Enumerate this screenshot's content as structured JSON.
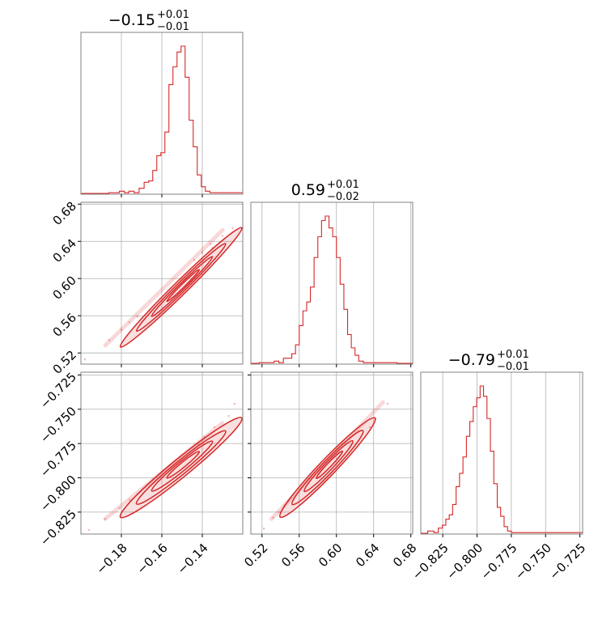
{
  "chart_data": [
    {
      "type": "histogram",
      "parameter_index": 0,
      "title": {
        "median": "−0.15",
        "upper": "+0.01",
        "lower": "−0.01"
      },
      "xlim": [
        -0.2,
        -0.12
      ],
      "bins": [
        {
          "x": -0.198,
          "y": 0.5
        },
        {
          "x": -0.195,
          "y": 0.5
        },
        {
          "x": -0.19,
          "y": 0.5
        },
        {
          "x": -0.1825,
          "y": 1
        },
        {
          "x": -0.1795,
          "y": 2
        },
        {
          "x": -0.1775,
          "y": 1
        },
        {
          "x": -0.175,
          "y": 2
        },
        {
          "x": -0.1725,
          "y": 1
        },
        {
          "x": -0.17,
          "y": 4
        },
        {
          "x": -0.1675,
          "y": 8
        },
        {
          "x": -0.1655,
          "y": 9
        },
        {
          "x": -0.1635,
          "y": 16
        },
        {
          "x": -0.1615,
          "y": 26
        },
        {
          "x": -0.1595,
          "y": 28
        },
        {
          "x": -0.1575,
          "y": 42
        },
        {
          "x": -0.1555,
          "y": 74
        },
        {
          "x": -0.1535,
          "y": 86
        },
        {
          "x": -0.1515,
          "y": 96
        },
        {
          "x": -0.1495,
          "y": 100
        },
        {
          "x": -0.1475,
          "y": 79
        },
        {
          "x": -0.1455,
          "y": 50
        },
        {
          "x": -0.1435,
          "y": 32
        },
        {
          "x": -0.1415,
          "y": 13
        },
        {
          "x": -0.1395,
          "y": 5
        },
        {
          "x": -0.1375,
          "y": 2
        },
        {
          "x": -0.135,
          "y": 1
        },
        {
          "x": -0.132,
          "y": 1
        },
        {
          "x": -0.126,
          "y": 1
        },
        {
          "x": -0.121,
          "y": 1
        }
      ]
    },
    {
      "type": "histogram",
      "parameter_index": 1,
      "title": {
        "median": "0.59",
        "upper": "+0.01",
        "lower": "−0.02"
      },
      "xlim": [
        0.508,
        0.682
      ],
      "bins": [
        {
          "x": 0.512,
          "y": 0.5
        },
        {
          "x": 0.522,
          "y": 1
        },
        {
          "x": 0.53,
          "y": 1
        },
        {
          "x": 0.536,
          "y": 2
        },
        {
          "x": 0.54,
          "y": 1
        },
        {
          "x": 0.546,
          "y": 4
        },
        {
          "x": 0.55,
          "y": 4
        },
        {
          "x": 0.554,
          "y": 7
        },
        {
          "x": 0.558,
          "y": 13
        },
        {
          "x": 0.562,
          "y": 26
        },
        {
          "x": 0.566,
          "y": 36
        },
        {
          "x": 0.57,
          "y": 42
        },
        {
          "x": 0.574,
          "y": 52
        },
        {
          "x": 0.578,
          "y": 72
        },
        {
          "x": 0.582,
          "y": 86
        },
        {
          "x": 0.586,
          "y": 97
        },
        {
          "x": 0.59,
          "y": 100
        },
        {
          "x": 0.594,
          "y": 92
        },
        {
          "x": 0.598,
          "y": 86
        },
        {
          "x": 0.602,
          "y": 72
        },
        {
          "x": 0.606,
          "y": 54
        },
        {
          "x": 0.61,
          "y": 37
        },
        {
          "x": 0.614,
          "y": 20
        },
        {
          "x": 0.618,
          "y": 11
        },
        {
          "x": 0.622,
          "y": 6
        },
        {
          "x": 0.626,
          "y": 2
        },
        {
          "x": 0.632,
          "y": 1
        },
        {
          "x": 0.652,
          "y": 1
        },
        {
          "x": 0.678,
          "y": 0.5
        }
      ]
    },
    {
      "type": "histogram",
      "parameter_index": 2,
      "title": {
        "median": "−0.79",
        "upper": "+0.01",
        "lower": "−0.01"
      },
      "xlim": [
        -0.841,
        -0.723
      ],
      "bins": [
        {
          "x": -0.839,
          "y": 0.5
        },
        {
          "x": -0.833,
          "y": 2
        },
        {
          "x": -0.83,
          "y": 1
        },
        {
          "x": -0.8265,
          "y": 4
        },
        {
          "x": -0.824,
          "y": 6
        },
        {
          "x": -0.8215,
          "y": 10
        },
        {
          "x": -0.819,
          "y": 13
        },
        {
          "x": -0.8165,
          "y": 20
        },
        {
          "x": -0.814,
          "y": 32
        },
        {
          "x": -0.8115,
          "y": 41
        },
        {
          "x": -0.809,
          "y": 52
        },
        {
          "x": -0.8065,
          "y": 66
        },
        {
          "x": -0.804,
          "y": 76
        },
        {
          "x": -0.8015,
          "y": 86
        },
        {
          "x": -0.799,
          "y": 92
        },
        {
          "x": -0.7965,
          "y": 100
        },
        {
          "x": -0.794,
          "y": 93
        },
        {
          "x": -0.7915,
          "y": 78
        },
        {
          "x": -0.789,
          "y": 56
        },
        {
          "x": -0.7865,
          "y": 34
        },
        {
          "x": -0.784,
          "y": 18
        },
        {
          "x": -0.7815,
          "y": 12
        },
        {
          "x": -0.779,
          "y": 5
        },
        {
          "x": -0.7765,
          "y": 2
        },
        {
          "x": -0.7735,
          "y": 1
        },
        {
          "x": -0.77,
          "y": 1
        },
        {
          "x": -0.764,
          "y": 1
        },
        {
          "x": -0.745,
          "y": 1
        },
        {
          "x": -0.725,
          "y": 1
        }
      ]
    },
    {
      "type": "scatter",
      "parameters": [
        0,
        1
      ],
      "xlim": [
        -0.2,
        -0.12
      ],
      "ylim": [
        0.508,
        0.682
      ],
      "trend": {
        "x": [
          -0.188,
          -0.13
        ],
        "y": [
          0.528,
          0.652
        ]
      },
      "points": [
        {
          "x": -0.198,
          "y": 0.513
        },
        {
          "x": -0.186,
          "y": 0.534
        },
        {
          "x": -0.18,
          "y": 0.545
        },
        {
          "x": -0.176,
          "y": 0.553
        },
        {
          "x": -0.172,
          "y": 0.559
        },
        {
          "x": -0.14,
          "y": 0.628
        },
        {
          "x": -0.136,
          "y": 0.637
        },
        {
          "x": -0.13,
          "y": 0.646
        },
        {
          "x": -0.125,
          "y": 0.654
        },
        {
          "x": -0.135,
          "y": 0.633
        },
        {
          "x": -0.166,
          "y": 0.566
        },
        {
          "x": -0.144,
          "y": 0.62
        }
      ],
      "contours": [
        {
          "cx": -0.1505,
          "cy": 0.5905,
          "a": 0.03,
          "b": 0.0024
        },
        {
          "cx": -0.1505,
          "cy": 0.5905,
          "a": 0.022,
          "b": 0.0017
        },
        {
          "cx": -0.15,
          "cy": 0.5915,
          "a": 0.015,
          "b": 0.0011
        },
        {
          "cx": -0.1495,
          "cy": 0.5925,
          "a": 0.008,
          "b": 0.0006
        }
      ],
      "yticks": [
        "0.52",
        "0.56",
        "0.60",
        "0.64",
        "0.68"
      ]
    },
    {
      "type": "scatter",
      "parameters": [
        0,
        2
      ],
      "xlim": [
        -0.2,
        -0.12
      ],
      "ylim": [
        -0.841,
        -0.723
      ],
      "trend": {
        "x": [
          -0.188,
          -0.13
        ],
        "y": [
          -0.83,
          -0.76
        ]
      },
      "points": [
        {
          "x": -0.196,
          "y": -0.838
        },
        {
          "x": -0.188,
          "y": -0.83
        },
        {
          "x": -0.181,
          "y": -0.822
        },
        {
          "x": -0.176,
          "y": -0.816
        },
        {
          "x": -0.139,
          "y": -0.77
        },
        {
          "x": -0.134,
          "y": -0.763
        },
        {
          "x": -0.127,
          "y": -0.755
        },
        {
          "x": -0.124,
          "y": -0.746
        },
        {
          "x": -0.172,
          "y": -0.812
        },
        {
          "x": -0.142,
          "y": -0.776
        }
      ],
      "contours": [
        {
          "cx": -0.1505,
          "cy": -0.7925,
          "a": 0.03,
          "b": 0.0022
        },
        {
          "cx": -0.1505,
          "cy": -0.7925,
          "a": 0.022,
          "b": 0.0016
        },
        {
          "cx": -0.15,
          "cy": -0.7915,
          "a": 0.015,
          "b": 0.0011
        },
        {
          "cx": -0.1495,
          "cy": -0.7905,
          "a": 0.008,
          "b": 0.0006
        }
      ],
      "xticks": [
        "−0.18",
        "−0.16",
        "−0.14"
      ],
      "yticks": [
        "−0.825",
        "−0.800",
        "−0.775",
        "−0.750",
        "−0.725"
      ]
    },
    {
      "type": "scatter",
      "parameters": [
        1,
        2
      ],
      "xlim": [
        0.508,
        0.682
      ],
      "ylim": [
        -0.841,
        -0.723
      ],
      "trend": {
        "x": [
          0.53,
          0.65
        ],
        "y": [
          -0.83,
          -0.745
        ]
      },
      "points": [
        {
          "x": 0.522,
          "y": -0.837
        },
        {
          "x": 0.532,
          "y": -0.829
        },
        {
          "x": 0.538,
          "y": -0.825
        },
        {
          "x": 0.544,
          "y": -0.82
        },
        {
          "x": 0.636,
          "y": -0.763
        },
        {
          "x": 0.642,
          "y": -0.757
        },
        {
          "x": 0.655,
          "y": -0.746
        },
        {
          "x": 0.548,
          "y": -0.817
        }
      ],
      "contours": [
        {
          "cx": 0.5905,
          "cy": -0.7925,
          "a": 0.051,
          "b": 0.002
        },
        {
          "cx": 0.5905,
          "cy": -0.7925,
          "a": 0.038,
          "b": 0.0015
        },
        {
          "cx": 0.5915,
          "cy": -0.7915,
          "a": 0.026,
          "b": 0.001
        },
        {
          "cx": 0.5925,
          "cy": -0.7905,
          "a": 0.014,
          "b": 0.0005
        }
      ],
      "xticks": [
        "0.52",
        "0.56",
        "0.60",
        "0.64",
        "0.68"
      ]
    }
  ],
  "bottom_xticks_param2": [
    "−0.825",
    "−0.800",
    "−0.775",
    "−0.750",
    "−0.725"
  ],
  "colors": {
    "series": "#d62728",
    "grid": "#b0b0b0",
    "frame": "#808080"
  }
}
